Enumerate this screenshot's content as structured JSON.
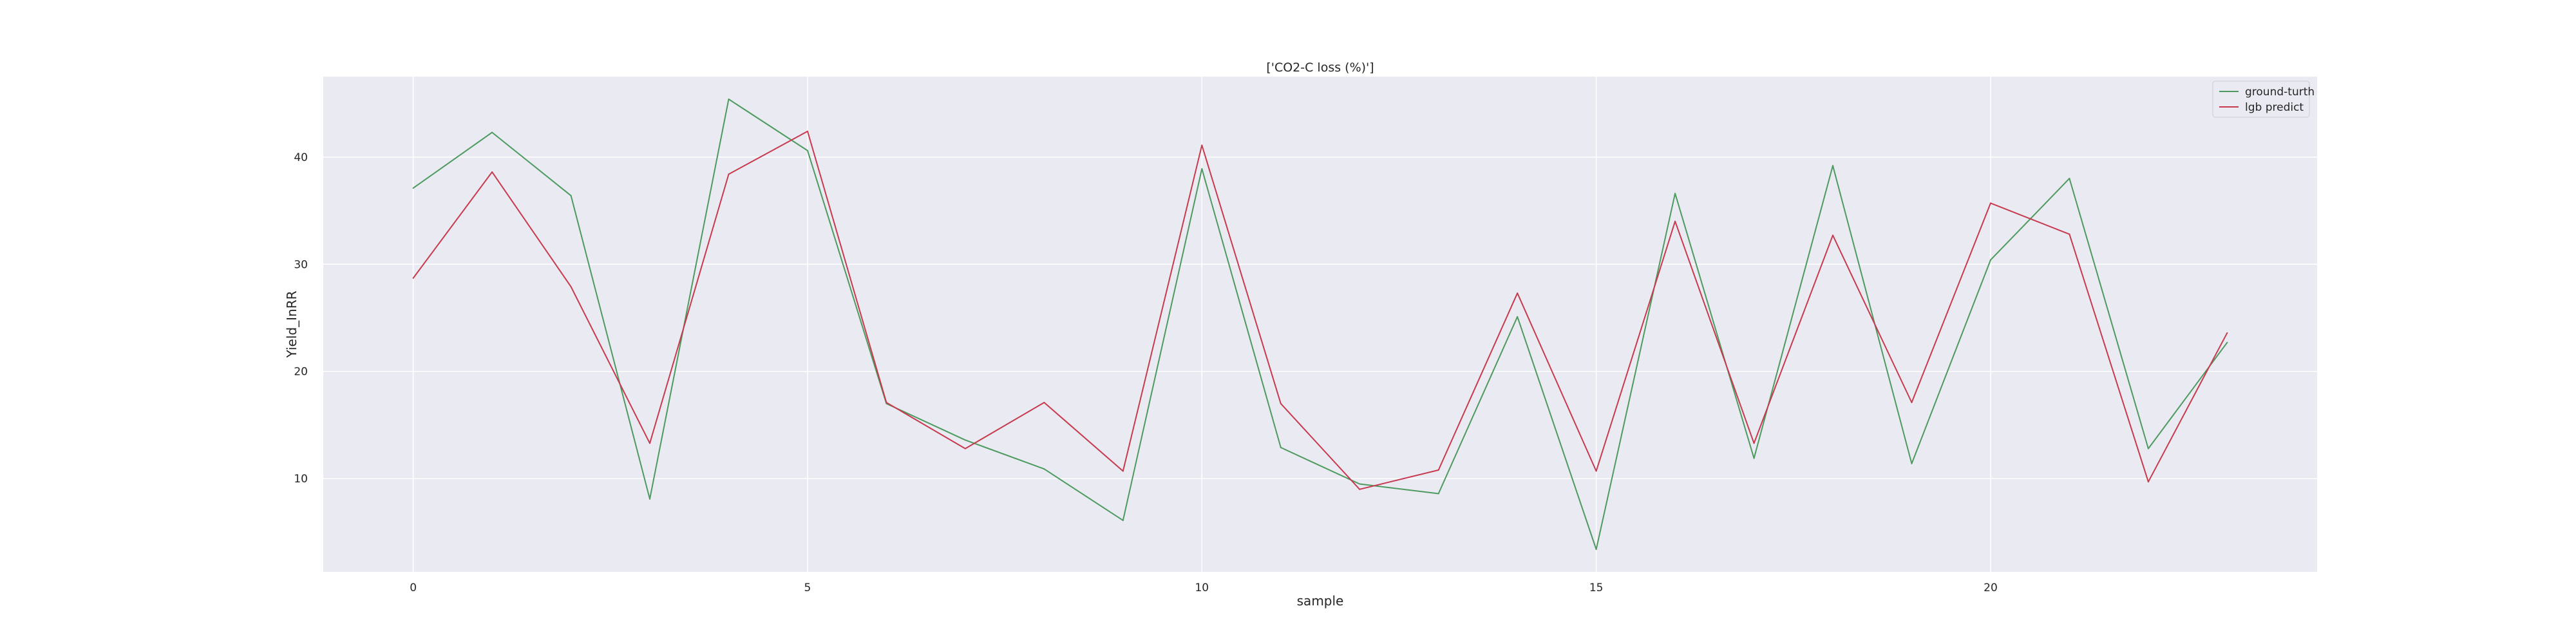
{
  "chart_data": {
    "type": "line",
    "title": "['CO2-C loss (%)']",
    "xlabel": "sample",
    "ylabel": "Yield_InRR",
    "x": [
      0,
      1,
      2,
      3,
      4,
      5,
      6,
      7,
      8,
      9,
      10,
      11,
      12,
      13,
      14,
      15,
      16,
      17,
      18,
      19,
      20,
      21,
      22,
      23
    ],
    "series": [
      {
        "name": "ground-turth",
        "color": "#4c9a5e",
        "values": [
          37.1,
          42.3,
          36.4,
          8.1,
          45.4,
          40.6,
          17.0,
          13.6,
          10.9,
          6.1,
          38.9,
          12.9,
          9.5,
          8.6,
          25.1,
          3.4,
          36.6,
          11.9,
          39.2,
          11.4,
          30.4,
          38.0,
          12.8,
          22.7
        ]
      },
      {
        "name": "lgb predict",
        "color": "#c73a4e",
        "values": [
          28.7,
          38.6,
          27.9,
          13.3,
          38.4,
          42.4,
          17.1,
          12.8,
          17.1,
          10.7,
          41.1,
          17.0,
          9.0,
          10.8,
          27.3,
          10.7,
          34.0,
          13.3,
          32.7,
          17.1,
          35.7,
          32.8,
          9.7,
          23.6
        ]
      }
    ],
    "xticks": [
      0,
      5,
      10,
      15,
      20
    ],
    "yticks": [
      10,
      20,
      30,
      40
    ],
    "xlim": [
      -1.14,
      24.14
    ],
    "ylim": [
      1.3,
      47.5
    ],
    "grid": true,
    "legend_position": "top-right",
    "colors": {
      "plot_background": "#eaeaf2",
      "grid": "#ffffff",
      "text": "#262626"
    }
  }
}
